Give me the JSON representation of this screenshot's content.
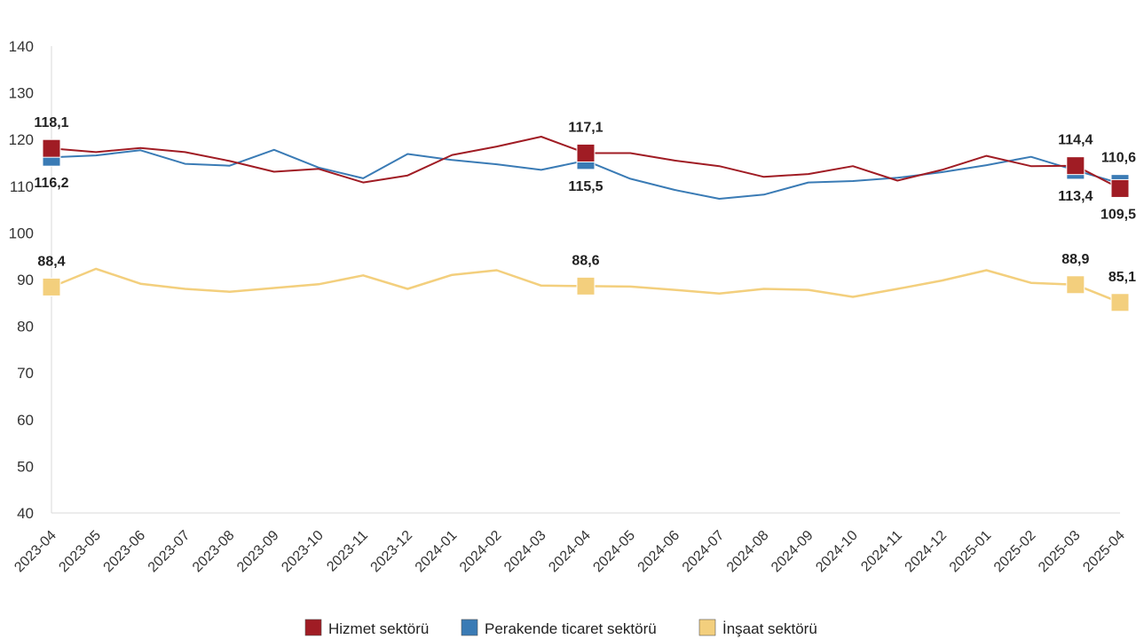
{
  "chart_data": {
    "type": "line",
    "categories": [
      "2023-04",
      "2023-05",
      "2023-06",
      "2023-07",
      "2023-08",
      "2023-09",
      "2023-10",
      "2023-11",
      "2023-12",
      "2024-01",
      "2024-02",
      "2024-03",
      "2024-04",
      "2024-05",
      "2024-06",
      "2024-07",
      "2024-08",
      "2024-09",
      "2024-10",
      "2024-11",
      "2024-12",
      "2025-01",
      "2025-02",
      "2025-03",
      "2025-04"
    ],
    "ylim": [
      40,
      140
    ],
    "yticks": [
      "40",
      "50",
      "60",
      "70",
      "80",
      "90",
      "100",
      "110",
      "120",
      "130",
      "140"
    ],
    "series": [
      {
        "name": "Hizmet sektörü",
        "color": "#a01c24",
        "values": [
          118.1,
          117.3,
          118.2,
          117.3,
          115.4,
          113.1,
          113.7,
          110.8,
          112.3,
          116.7,
          118.5,
          120.6,
          117.1,
          117.1,
          115.5,
          114.3,
          112.0,
          112.6,
          114.3,
          111.2,
          113.5,
          116.5,
          114.3,
          114.4,
          109.5
        ]
      },
      {
        "name": "Perakende ticaret sektörü",
        "color": "#3a7bb5",
        "values": [
          116.2,
          116.6,
          117.7,
          114.8,
          114.4,
          117.8,
          114.0,
          111.7,
          116.9,
          115.6,
          114.7,
          113.5,
          115.5,
          111.6,
          109.2,
          107.3,
          108.2,
          110.8,
          111.1,
          111.8,
          113.0,
          114.5,
          116.3,
          113.4,
          110.6
        ]
      },
      {
        "name": "İnşaat sektörü",
        "color": "#f3cf7d",
        "values": [
          88.4,
          92.3,
          89.1,
          88.0,
          87.4,
          88.2,
          89.0,
          90.9,
          88.0,
          91.0,
          92.0,
          88.7,
          88.6,
          88.5,
          87.8,
          87.0,
          88.0,
          87.8,
          86.3,
          88.0,
          89.8,
          92.0,
          89.3,
          88.9,
          85.1
        ]
      }
    ],
    "markers": [
      {
        "series": 2,
        "index": 0
      },
      {
        "series": 1,
        "index": 0
      },
      {
        "series": 0,
        "index": 0
      },
      {
        "series": 2,
        "index": 12
      },
      {
        "series": 1,
        "index": 12
      },
      {
        "series": 0,
        "index": 12
      },
      {
        "series": 2,
        "index": 23
      },
      {
        "series": 1,
        "index": 23
      },
      {
        "series": 0,
        "index": 23
      },
      {
        "series": 2,
        "index": 24
      },
      {
        "series": 1,
        "index": 24
      },
      {
        "series": 0,
        "index": 24
      }
    ],
    "data_labels": [
      {
        "text": "118,1",
        "series": 0,
        "index": 0,
        "pos": "above"
      },
      {
        "text": "116,2",
        "series": 1,
        "index": 0,
        "pos": "below"
      },
      {
        "text": "88,4",
        "series": 2,
        "index": 0,
        "pos": "above"
      },
      {
        "text": "117,1",
        "series": 0,
        "index": 12,
        "pos": "above"
      },
      {
        "text": "115,5",
        "series": 1,
        "index": 12,
        "pos": "below"
      },
      {
        "text": "88,6",
        "series": 2,
        "index": 12,
        "pos": "above"
      },
      {
        "text": "114,4",
        "series": 0,
        "index": 23,
        "pos": "above"
      },
      {
        "text": "113,4",
        "series": 1,
        "index": 23,
        "pos": "below"
      },
      {
        "text": "88,9",
        "series": 2,
        "index": 23,
        "pos": "above"
      },
      {
        "text": "110,6",
        "series": 1,
        "index": 24,
        "pos": "above"
      },
      {
        "text": "109,5",
        "series": 0,
        "index": 24,
        "pos": "below"
      },
      {
        "text": "85,1",
        "series": 2,
        "index": 24,
        "pos": "above"
      }
    ],
    "legend": [
      "Hizmet sektörü",
      "Perakende ticaret sektörü",
      "İnşaat sektörü"
    ],
    "legend_position": "bottom",
    "grid": false
  }
}
